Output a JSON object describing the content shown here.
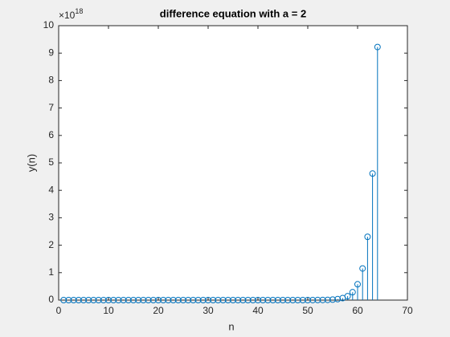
{
  "chart_data": {
    "type": "stem",
    "title": "difference equation with a = 2",
    "xlabel": "n",
    "ylabel": "y(n)",
    "y_multiplier": "×10",
    "y_exponent": "18",
    "x": [
      1,
      2,
      3,
      4,
      5,
      6,
      7,
      8,
      9,
      10,
      11,
      12,
      13,
      14,
      15,
      16,
      17,
      18,
      19,
      20,
      21,
      22,
      23,
      24,
      25,
      26,
      27,
      28,
      29,
      30,
      31,
      32,
      33,
      34,
      35,
      36,
      37,
      38,
      39,
      40,
      41,
      42,
      43,
      44,
      45,
      46,
      47,
      48,
      49,
      50,
      51,
      52,
      53,
      54,
      55,
      56,
      57,
      58,
      59,
      60,
      61,
      62,
      63,
      64
    ],
    "series": [
      {
        "name": "y(n)",
        "color": "#0072bd",
        "values": [
          0,
          0,
          0,
          0,
          0,
          0,
          0,
          0,
          0,
          0,
          0,
          0,
          0,
          0,
          0,
          0,
          0,
          0,
          0,
          0,
          0,
          0,
          0,
          0,
          0,
          0,
          0,
          0,
          0,
          0,
          0,
          0,
          0,
          0,
          0,
          0,
          0,
          0,
          0,
          0,
          0,
          0,
          0,
          0,
          0,
          0,
          0,
          0,
          0,
          0,
          0.001,
          0.002,
          0.005,
          0.009,
          0.018,
          0.036,
          0.072,
          0.144,
          0.288,
          0.576,
          1.153,
          2.306,
          4.612,
          9.223
        ]
      }
    ],
    "xlim": [
      0,
      70
    ],
    "xticks": [
      0,
      10,
      20,
      30,
      40,
      50,
      60,
      70
    ],
    "ylim": [
      0,
      10
    ],
    "yticks": [
      0,
      1,
      2,
      3,
      4,
      5,
      6,
      7,
      8,
      9,
      10
    ]
  }
}
